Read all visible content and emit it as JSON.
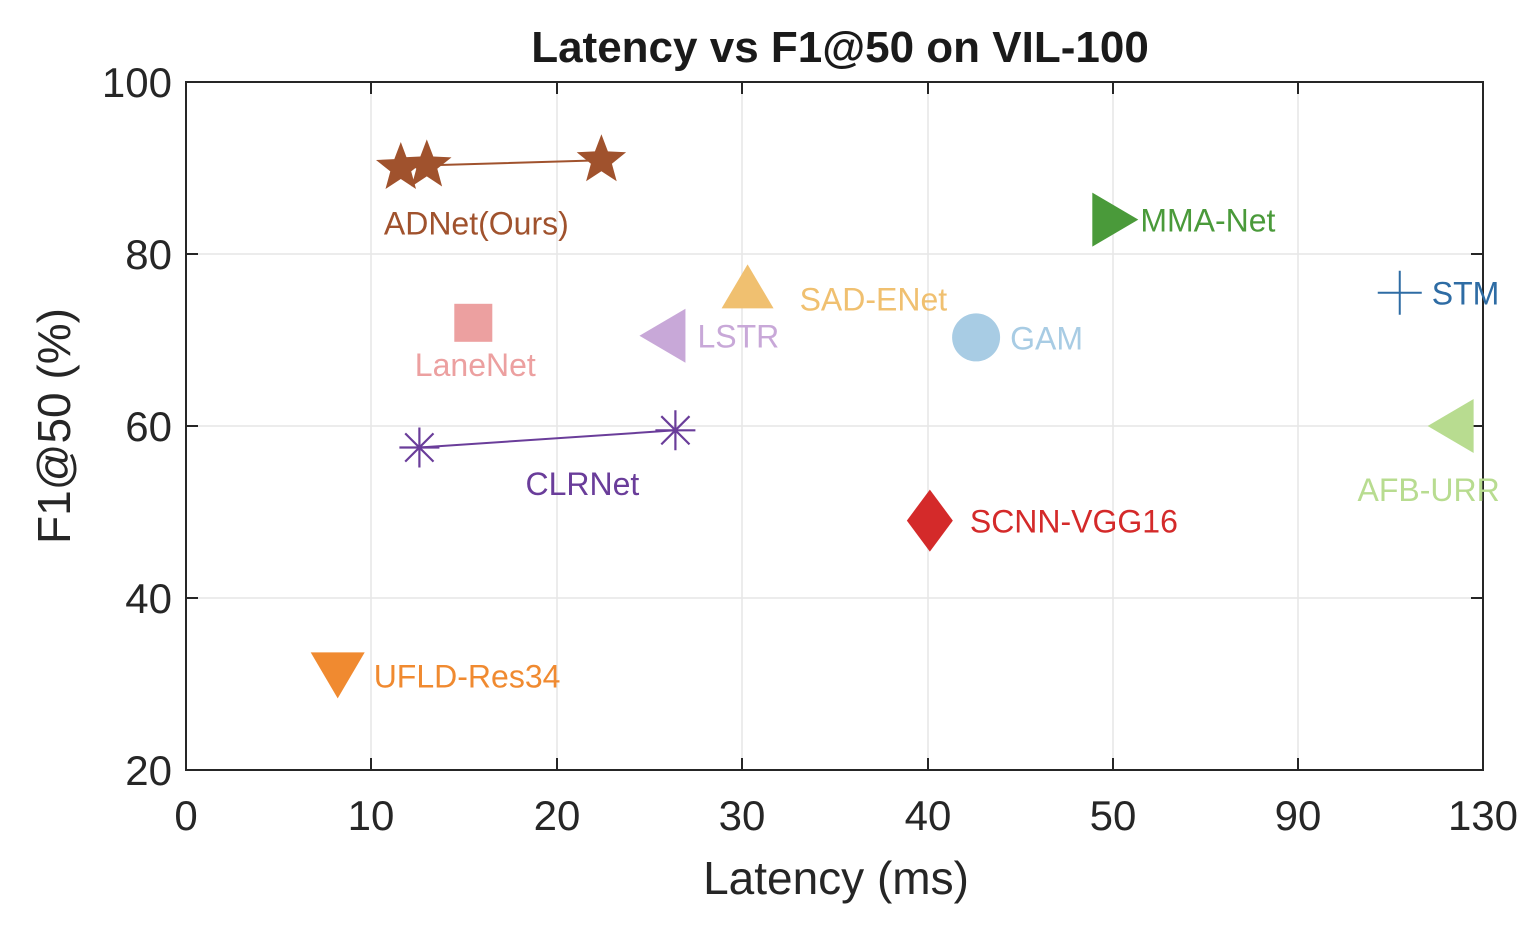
{
  "chart_data": {
    "type": "scatter",
    "title": "Latency vs F1@50 on VIL-100",
    "xlabel": "Latency (ms)",
    "ylabel": "F1@50 (%)",
    "x_ticks": [
      "0",
      "10",
      "20",
      "30",
      "40",
      "50",
      "90",
      "130"
    ],
    "xlim": [
      0,
      130
    ],
    "ylim": [
      20,
      100
    ],
    "y_ticks": [
      "20",
      "40",
      "60",
      "80",
      "100"
    ],
    "grid": true,
    "series": [
      {
        "name": "ADNet(Ours)",
        "color": "#a0522d",
        "marker": "star",
        "connected": true,
        "points": [
          {
            "x": 11.6,
            "y": 90.0
          },
          {
            "x": 13.0,
            "y": 90.3
          },
          {
            "x": 22.4,
            "y": 90.9
          }
        ]
      },
      {
        "name": "MMA-Net",
        "color": "#4a9a3a",
        "marker": "triangle-right",
        "points": [
          {
            "x": 50.5,
            "y": 84.0
          }
        ]
      },
      {
        "name": "SAD-ENet",
        "color": "#f0c070",
        "marker": "triangle-up",
        "points": [
          {
            "x": 30.3,
            "y": 76.0
          }
        ]
      },
      {
        "name": "STM",
        "color": "#2e6ca4",
        "marker": "plus",
        "points": [
          {
            "x": 112.0,
            "y": 75.5
          }
        ]
      },
      {
        "name": "LaneNet",
        "color": "#eca0a0",
        "marker": "square",
        "points": [
          {
            "x": 15.5,
            "y": 72.0
          }
        ]
      },
      {
        "name": "LSTR",
        "color": "#c8a8d8",
        "marker": "triangle-left",
        "points": [
          {
            "x": 25.7,
            "y": 70.5
          }
        ]
      },
      {
        "name": "GAM",
        "color": "#a8cce4",
        "marker": "circle",
        "points": [
          {
            "x": 42.6,
            "y": 70.3
          }
        ]
      },
      {
        "name": "AFB-URR",
        "color": "#b8dc90",
        "marker": "triangle-left",
        "points": [
          {
            "x": 123.0,
            "y": 60.0
          }
        ]
      },
      {
        "name": "CLRNet",
        "color": "#6a3d9a",
        "marker": "asterisk",
        "connected": true,
        "points": [
          {
            "x": 12.6,
            "y": 57.5
          },
          {
            "x": 26.4,
            "y": 59.5
          }
        ]
      },
      {
        "name": "SCNN-VGG16",
        "color": "#d42a2a",
        "marker": "diamond",
        "points": [
          {
            "x": 40.1,
            "y": 49.0
          }
        ]
      },
      {
        "name": "UFLD-Res34",
        "color": "#f08a30",
        "marker": "triangle-down",
        "points": [
          {
            "x": 8.2,
            "y": 31.0
          }
        ]
      }
    ]
  }
}
